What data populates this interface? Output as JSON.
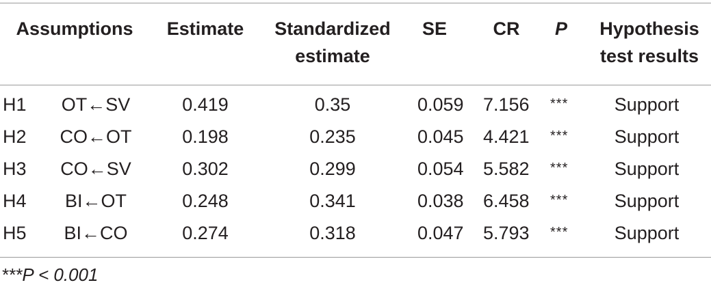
{
  "table": {
    "headers": {
      "assumptions": "Assumptions",
      "estimate": "Estimate",
      "standardized_line1": "Standardized",
      "standardized_line2": "estimate",
      "se": "SE",
      "cr": "CR",
      "p": "P",
      "hypothesis_line1": "Hypothesis",
      "hypothesis_line2": "test results"
    },
    "rows": [
      {
        "id": "H1",
        "path": "OT←SV",
        "estimate": "0.419",
        "standardized": "0.35",
        "se": "0.059",
        "cr": "7.156",
        "p": "***",
        "result": "Support"
      },
      {
        "id": "H2",
        "path": "CO←OT",
        "estimate": "0.198",
        "standardized": "0.235",
        "se": "0.045",
        "cr": "4.421",
        "p": "***",
        "result": "Support"
      },
      {
        "id": "H3",
        "path": "CO←SV",
        "estimate": "0.302",
        "standardized": "0.299",
        "se": "0.054",
        "cr": "5.582",
        "p": "***",
        "result": "Support"
      },
      {
        "id": "H4",
        "path": "BI←OT",
        "estimate": "0.248",
        "standardized": "0.341",
        "se": "0.038",
        "cr": "6.458",
        "p": "***",
        "result": "Support"
      },
      {
        "id": "H5",
        "path": "BI←CO",
        "estimate": "0.274",
        "standardized": "0.318",
        "se": "0.047",
        "cr": "5.793",
        "p": "***",
        "result": "Support"
      }
    ],
    "footnote": "***P < 0.001"
  }
}
